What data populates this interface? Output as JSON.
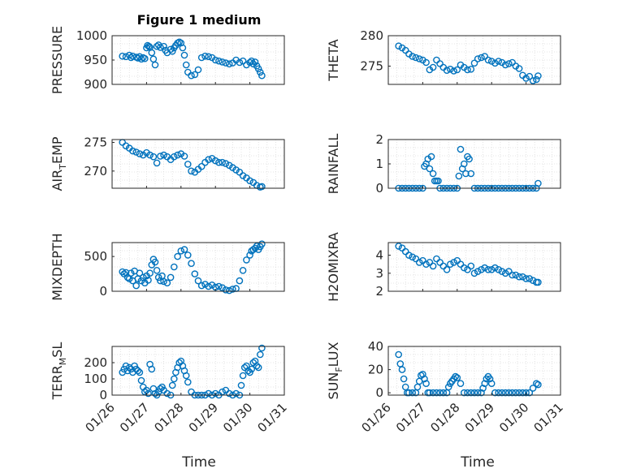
{
  "figure_title": "Figure 1 medium",
  "colors": {
    "marker": "#0072BD",
    "axis": "#262626",
    "grid": "#dcdcdc"
  },
  "x_tick_labels": [
    "01/26",
    "01/27",
    "01/28",
    "01/29",
    "01/30",
    "01/31"
  ],
  "x_label": "Time",
  "chart_data": [
    {
      "type": "scatter",
      "ylabel": "PRESSURE",
      "ylim": [
        900,
        1000
      ],
      "yticks": [
        900,
        950,
        1000
      ],
      "grid": true,
      "xlim": [
        0,
        5
      ],
      "x": [
        0.3,
        0.4,
        0.5,
        0.55,
        0.6,
        0.7,
        0.75,
        0.8,
        0.85,
        0.9,
        0.95,
        1.0,
        1.03,
        1.07,
        1.1,
        1.15,
        1.2,
        1.25,
        1.3,
        1.35,
        1.4,
        1.5,
        1.55,
        1.6,
        1.7,
        1.75,
        1.8,
        1.85,
        1.9,
        1.95,
        2.0,
        2.05,
        2.1,
        2.15,
        2.2,
        2.3,
        2.4,
        2.5,
        2.6,
        2.7,
        2.8,
        2.9,
        3.0,
        3.1,
        3.2,
        3.3,
        3.4,
        3.5,
        3.6,
        3.7,
        3.8,
        3.9,
        4.0,
        4.05,
        4.1,
        4.15,
        4.2,
        4.25,
        4.3,
        4.35
      ],
      "y": [
        958,
        957,
        960,
        955,
        958,
        956,
        954,
        957,
        952,
        955,
        953,
        975,
        980,
        978,
        976,
        965,
        952,
        940,
        978,
        981,
        976,
        978,
        970,
        965,
        972,
        968,
        975,
        980,
        985,
        987,
        985,
        975,
        960,
        940,
        925,
        918,
        920,
        930,
        955,
        958,
        957,
        955,
        950,
        948,
        946,
        944,
        942,
        944,
        950,
        945,
        948,
        940,
        945,
        948,
        942,
        946,
        938,
        932,
        925,
        918
      ]
    },
    {
      "type": "scatter",
      "ylabel": "THETA",
      "ylim": [
        272,
        280
      ],
      "yticks": [
        275,
        280
      ],
      "grid": true,
      "xlim": [
        0,
        5
      ],
      "x": [
        0.3,
        0.4,
        0.5,
        0.6,
        0.7,
        0.8,
        0.9,
        1.0,
        1.1,
        1.2,
        1.3,
        1.4,
        1.5,
        1.6,
        1.7,
        1.8,
        1.9,
        2.0,
        2.1,
        2.2,
        2.3,
        2.4,
        2.5,
        2.6,
        2.7,
        2.8,
        2.9,
        3.0,
        3.1,
        3.2,
        3.3,
        3.4,
        3.5,
        3.6,
        3.7,
        3.8,
        3.9,
        4.0,
        4.1,
        4.2,
        4.3,
        4.35
      ],
      "y": [
        278.3,
        278,
        277.6,
        277,
        276.6,
        276.4,
        276.2,
        276,
        275.6,
        274.4,
        274.8,
        276,
        275.4,
        274.8,
        274.3,
        274.5,
        274.2,
        274.4,
        275.2,
        274.8,
        274.4,
        274.5,
        275.5,
        276.2,
        276.4,
        276.6,
        276,
        275.8,
        275.5,
        275.8,
        275.6,
        275.2,
        275.4,
        275.6,
        275,
        274.6,
        273.5,
        273,
        273.3,
        272.6,
        272.8,
        273.4
      ]
    },
    {
      "type": "scatter",
      "ylabel": "AIR_TEMP",
      "ylim": [
        267,
        275.5
      ],
      "yticks": [
        270,
        275
      ],
      "grid": true,
      "xlim": [
        0,
        5
      ],
      "x": [
        0.3,
        0.4,
        0.5,
        0.6,
        0.7,
        0.8,
        0.9,
        1.0,
        1.1,
        1.2,
        1.3,
        1.4,
        1.5,
        1.6,
        1.7,
        1.8,
        1.9,
        2.0,
        2.1,
        2.2,
        2.3,
        2.4,
        2.5,
        2.6,
        2.7,
        2.8,
        2.9,
        3.0,
        3.1,
        3.2,
        3.3,
        3.4,
        3.5,
        3.6,
        3.7,
        3.8,
        3.9,
        4.0,
        4.1,
        4.2,
        4.3,
        4.35
      ],
      "y": [
        275,
        274.4,
        274,
        273.5,
        273.3,
        273,
        272.8,
        273.2,
        272.8,
        272.5,
        271.4,
        272.6,
        272.8,
        272.5,
        272,
        272.5,
        272.8,
        273,
        272.6,
        271.2,
        270,
        269.8,
        270.3,
        270.8,
        271.5,
        272,
        272.2,
        271.8,
        271.5,
        271.5,
        271.3,
        271,
        270.6,
        270.2,
        269.8,
        269.2,
        268.8,
        268.3,
        268,
        267.5,
        267.2,
        267.3
      ]
    },
    {
      "type": "scatter",
      "ylabel": "RAINFALL",
      "ylim": [
        0,
        2
      ],
      "yticks": [
        0,
        1,
        2
      ],
      "grid": true,
      "xlim": [
        0,
        5
      ],
      "x": [
        0.3,
        0.4,
        0.5,
        0.6,
        0.7,
        0.8,
        0.9,
        1.0,
        1.05,
        1.1,
        1.15,
        1.2,
        1.25,
        1.3,
        1.35,
        1.4,
        1.45,
        1.5,
        1.6,
        1.7,
        1.8,
        1.9,
        2.0,
        2.05,
        2.1,
        2.15,
        2.2,
        2.25,
        2.3,
        2.35,
        2.4,
        2.5,
        2.6,
        2.7,
        2.8,
        2.9,
        3.0,
        3.1,
        3.2,
        3.3,
        3.4,
        3.5,
        3.6,
        3.7,
        3.8,
        3.9,
        4.0,
        4.1,
        4.2,
        4.3,
        4.35
      ],
      "y": [
        0,
        0,
        0,
        0,
        0,
        0,
        0,
        0,
        0.9,
        1.0,
        1.2,
        0.8,
        1.3,
        0.6,
        0.3,
        0.3,
        0.3,
        0,
        0,
        0,
        0,
        0,
        0,
        0.5,
        1.6,
        0.8,
        1.0,
        0.6,
        1.3,
        1.2,
        0.6,
        0,
        0,
        0,
        0,
        0,
        0,
        0,
        0,
        0,
        0,
        0,
        0,
        0,
        0,
        0,
        0,
        0,
        0,
        0,
        0.2
      ]
    },
    {
      "type": "scatter",
      "ylabel": "MIXDEPTH",
      "ylim": [
        0,
        700
      ],
      "yticks": [
        0,
        500
      ],
      "grid": true,
      "xlim": [
        0,
        5
      ],
      "x": [
        0.3,
        0.35,
        0.4,
        0.45,
        0.5,
        0.55,
        0.6,
        0.65,
        0.7,
        0.75,
        0.8,
        0.85,
        0.9,
        0.95,
        1.0,
        1.05,
        1.1,
        1.15,
        1.2,
        1.25,
        1.3,
        1.35,
        1.4,
        1.45,
        1.5,
        1.6,
        1.7,
        1.8,
        1.9,
        2.0,
        2.1,
        2.2,
        2.3,
        2.4,
        2.5,
        2.6,
        2.7,
        2.8,
        2.9,
        3.0,
        3.1,
        3.2,
        3.3,
        3.4,
        3.5,
        3.6,
        3.7,
        3.8,
        3.9,
        4.0,
        4.05,
        4.1,
        4.15,
        4.2,
        4.25,
        4.3,
        4.35
      ],
      "y": [
        280,
        250,
        270,
        200,
        180,
        260,
        150,
        290,
        80,
        180,
        260,
        150,
        200,
        120,
        220,
        160,
        260,
        380,
        460,
        420,
        300,
        200,
        150,
        220,
        140,
        120,
        200,
        350,
        500,
        580,
        600,
        520,
        400,
        250,
        150,
        80,
        100,
        70,
        90,
        60,
        70,
        50,
        20,
        10,
        30,
        40,
        150,
        300,
        450,
        520,
        580,
        600,
        620,
        650,
        600,
        640,
        680
      ]
    },
    {
      "type": "scatter",
      "ylabel": "H2OMIXRA",
      "ylim": [
        2,
        4.7
      ],
      "yticks": [
        2,
        3,
        4
      ],
      "grid": true,
      "xlim": [
        0,
        5
      ],
      "x": [
        0.3,
        0.4,
        0.5,
        0.6,
        0.7,
        0.8,
        0.9,
        1.0,
        1.1,
        1.2,
        1.3,
        1.4,
        1.5,
        1.6,
        1.7,
        1.8,
        1.9,
        2.0,
        2.1,
        2.2,
        2.3,
        2.4,
        2.5,
        2.6,
        2.7,
        2.8,
        2.9,
        3.0,
        3.1,
        3.2,
        3.3,
        3.4,
        3.5,
        3.6,
        3.7,
        3.8,
        3.9,
        4.0,
        4.1,
        4.2,
        4.3,
        4.35
      ],
      "y": [
        4.5,
        4.4,
        4.2,
        4.0,
        3.9,
        3.8,
        3.6,
        3.7,
        3.5,
        3.6,
        3.4,
        3.8,
        3.6,
        3.4,
        3.2,
        3.5,
        3.6,
        3.7,
        3.5,
        3.3,
        3.2,
        3.4,
        3.0,
        3.1,
        3.2,
        3.3,
        3.2,
        3.2,
        3.3,
        3.2,
        3.1,
        3.0,
        3.1,
        2.9,
        2.9,
        2.8,
        2.8,
        2.7,
        2.7,
        2.6,
        2.5,
        2.5
      ]
    },
    {
      "type": "scatter",
      "ylabel": "TERR_MSL",
      "ylim": [
        0,
        300
      ],
      "yticks": [
        0,
        100,
        200
      ],
      "grid": true,
      "xlim": [
        0,
        5
      ],
      "x": [
        0.3,
        0.35,
        0.4,
        0.45,
        0.5,
        0.55,
        0.6,
        0.65,
        0.7,
        0.75,
        0.8,
        0.85,
        0.9,
        0.95,
        1.0,
        1.05,
        1.1,
        1.15,
        1.2,
        1.25,
        1.3,
        1.35,
        1.4,
        1.45,
        1.5,
        1.6,
        1.7,
        1.75,
        1.8,
        1.85,
        1.9,
        1.95,
        2.0,
        2.05,
        2.1,
        2.15,
        2.2,
        2.3,
        2.4,
        2.5,
        2.6,
        2.7,
        2.8,
        2.9,
        3.0,
        3.1,
        3.2,
        3.3,
        3.4,
        3.5,
        3.6,
        3.7,
        3.75,
        3.8,
        3.85,
        3.9,
        3.95,
        4.0,
        4.05,
        4.1,
        4.15,
        4.2,
        4.25,
        4.3,
        4.35
      ],
      "y": [
        140,
        160,
        180,
        150,
        170,
        160,
        140,
        180,
        160,
        150,
        140,
        90,
        50,
        20,
        30,
        10,
        190,
        160,
        40,
        10,
        0,
        20,
        40,
        50,
        30,
        10,
        0,
        60,
        100,
        140,
        170,
        200,
        210,
        180,
        150,
        120,
        80,
        20,
        0,
        0,
        0,
        0,
        10,
        0,
        10,
        0,
        20,
        30,
        10,
        0,
        10,
        0,
        60,
        120,
        170,
        180,
        150,
        140,
        160,
        200,
        210,
        180,
        170,
        250,
        290
      ]
    },
    {
      "type": "scatter",
      "ylabel": "SUN_FLUX",
      "ylim": [
        -2,
        40
      ],
      "yticks": [
        0,
        20,
        40
      ],
      "grid": true,
      "xlim": [
        0,
        5
      ],
      "x": [
        0.3,
        0.35,
        0.4,
        0.45,
        0.5,
        0.55,
        0.6,
        0.7,
        0.8,
        0.85,
        0.9,
        0.95,
        1.0,
        1.05,
        1.1,
        1.15,
        1.2,
        1.3,
        1.4,
        1.5,
        1.6,
        1.7,
        1.75,
        1.8,
        1.85,
        1.9,
        1.95,
        2.0,
        2.1,
        2.2,
        2.3,
        2.4,
        2.5,
        2.6,
        2.7,
        2.75,
        2.8,
        2.85,
        2.9,
        2.95,
        3.0,
        3.1,
        3.2,
        3.3,
        3.4,
        3.5,
        3.6,
        3.7,
        3.8,
        3.9,
        4.0,
        4.1,
        4.2,
        4.3,
        4.35
      ],
      "y": [
        33,
        25,
        20,
        12,
        5,
        0,
        0,
        0,
        0,
        5,
        10,
        15,
        16,
        12,
        8,
        0,
        0,
        0,
        0,
        0,
        0,
        0,
        5,
        8,
        10,
        12,
        14,
        13,
        8,
        0,
        0,
        0,
        0,
        0,
        0,
        4,
        8,
        12,
        14,
        12,
        8,
        0,
        0,
        0,
        0,
        0,
        0,
        0,
        0,
        0,
        0,
        0,
        4,
        8,
        7
      ]
    }
  ]
}
